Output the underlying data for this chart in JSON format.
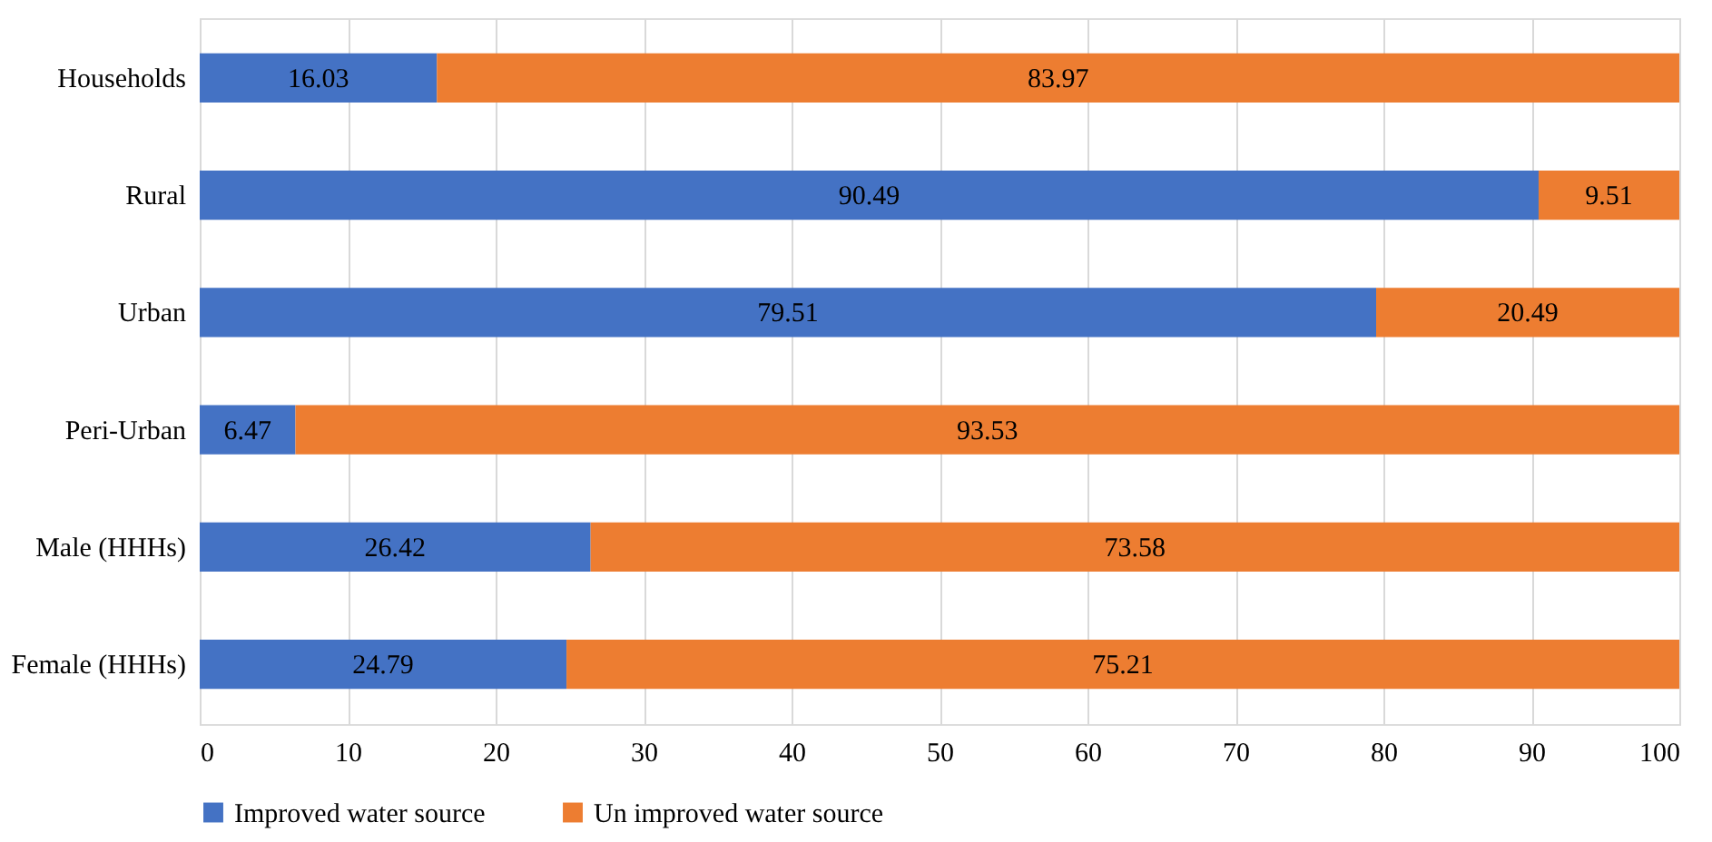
{
  "chart_data": {
    "type": "bar",
    "orientation": "horizontal",
    "stacked": true,
    "data_labels": true,
    "grid": "x",
    "legend": "bottom",
    "categories": [
      "Households",
      "Rural",
      "Urban",
      "Peri-Urban",
      "Male (HHHs)",
      "Female (HHHs)"
    ],
    "series": [
      {
        "name": "Improved water source",
        "color": "#4472c4",
        "values": [
          16.03,
          90.49,
          79.51,
          6.47,
          26.42,
          24.79
        ]
      },
      {
        "name": "Un improved water source",
        "color": "#ed7d31",
        "values": [
          83.97,
          9.51,
          20.49,
          93.53,
          73.58,
          75.21
        ]
      }
    ],
    "xlim": [
      0,
      100
    ],
    "xticks": [
      0,
      10,
      20,
      30,
      40,
      50,
      60,
      70,
      80,
      90,
      100
    ]
  }
}
